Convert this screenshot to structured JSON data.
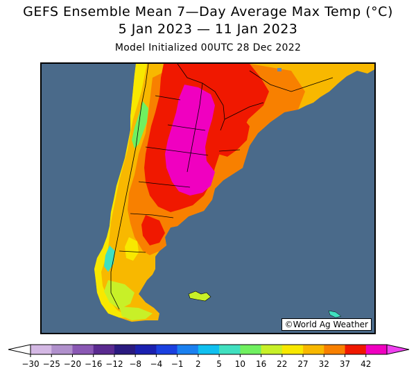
{
  "header": {
    "title_line1": "GEFS Ensemble Mean 7—Day Average Max Temp (°C)",
    "title_line2": "5 Jan 2023 — 11 Jan 2023",
    "subtitle": "Model Initialized 00UTC 28 Dec 2022"
  },
  "map": {
    "region": "Argentina / Chile / Uruguay",
    "credit": "©World Ag Weather",
    "ocean_color": "#4a6a8a"
  },
  "legend": {
    "tick_labels": [
      "−30",
      "−25",
      "−20",
      "−16",
      "−12",
      "−8",
      "−4",
      "−1",
      "2",
      "5",
      "10",
      "16",
      "22",
      "27",
      "32",
      "37",
      "42"
    ],
    "colors": [
      "#d4b8e4",
      "#b090cc",
      "#8a58b4",
      "#5a2a90",
      "#2a1a80",
      "#1a20b0",
      "#1a40e0",
      "#1a80f0",
      "#10c0f0",
      "#40e0c0",
      "#70f060",
      "#c8f028",
      "#f8e800",
      "#f8b800",
      "#f88000",
      "#f01800",
      "#f000c0"
    ],
    "under_color": "#ffffff",
    "over_color": "#f040f0"
  }
}
